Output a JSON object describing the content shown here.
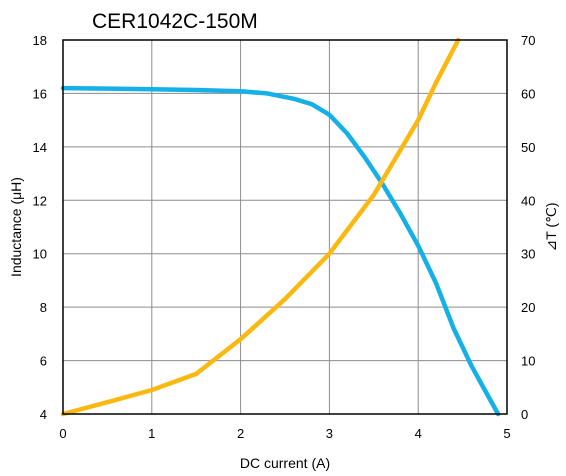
{
  "chart_data": {
    "type": "line",
    "title": "CER1042C-150M",
    "xlabel": "DC current (A)",
    "ylabel": "Inductance (μH)",
    "y2label": "⊿T (℃)",
    "xlim": [
      0,
      5
    ],
    "ylim": [
      4,
      18
    ],
    "y2lim": [
      0,
      70
    ],
    "x_ticks": [
      0,
      1,
      2,
      3,
      4,
      5
    ],
    "y_ticks": [
      4,
      6,
      8,
      10,
      12,
      14,
      16,
      18
    ],
    "y2_ticks": [
      0,
      10,
      20,
      30,
      40,
      50,
      60,
      70
    ],
    "grid": true,
    "series": [
      {
        "axis": "left",
        "color": "#16b0e8",
        "x": [
          0,
          0.5,
          1.0,
          1.5,
          2.0,
          2.3,
          2.6,
          2.8,
          3.0,
          3.2,
          3.4,
          3.6,
          3.8,
          4.0,
          4.2,
          4.4,
          4.6,
          4.8,
          4.9
        ],
        "y": [
          16.2,
          16.18,
          16.16,
          16.13,
          16.08,
          16.0,
          15.8,
          15.6,
          15.2,
          14.5,
          13.6,
          12.6,
          11.5,
          10.3,
          8.9,
          7.2,
          5.8,
          4.6,
          4.0
        ]
      },
      {
        "axis": "right",
        "color": "#fbb810",
        "x": [
          0,
          0.5,
          1.0,
          1.5,
          2.0,
          2.5,
          3.0,
          3.5,
          4.0,
          4.2,
          4.45
        ],
        "y": [
          0,
          2.2,
          4.5,
          7.5,
          14,
          21.5,
          30,
          41,
          55,
          62,
          70
        ]
      }
    ]
  }
}
